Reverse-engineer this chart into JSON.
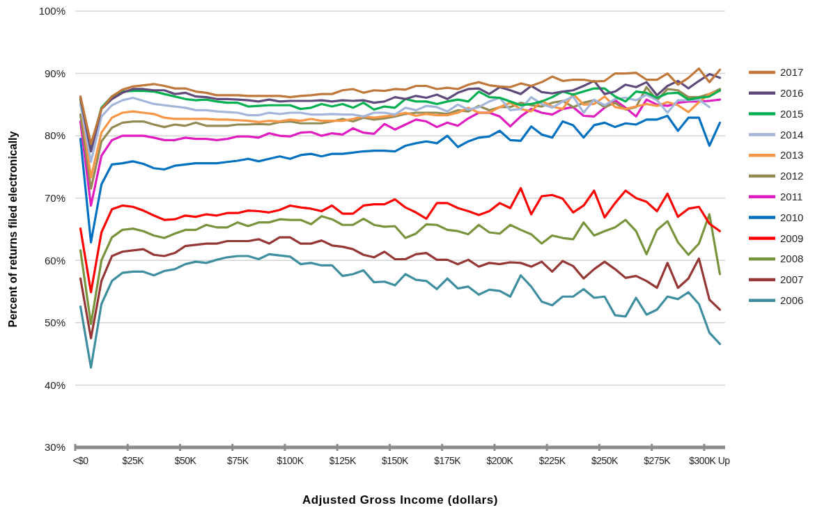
{
  "chart_data": {
    "type": "line",
    "xlabel": "Adjusted Gross Income (dollars)",
    "ylabel": "Percent of returns filed electronically",
    "categories": [
      "<$0",
      null,
      null,
      null,
      null,
      "$25K",
      null,
      null,
      null,
      null,
      "$50K",
      null,
      null,
      null,
      null,
      "$75K",
      null,
      null,
      null,
      null,
      "$100K",
      null,
      null,
      null,
      null,
      "$125K",
      null,
      null,
      null,
      null,
      "$150K",
      null,
      null,
      null,
      null,
      "$175K",
      null,
      null,
      null,
      null,
      "$200K",
      null,
      null,
      null,
      null,
      "$225K",
      null,
      null,
      null,
      null,
      "$250K",
      null,
      null,
      null,
      null,
      "$275K",
      null,
      null,
      null,
      null,
      "$300K Up",
      null
    ],
    "ylim": [
      30,
      100
    ],
    "yticks": [
      {
        "value": 30,
        "label": "30%"
      },
      {
        "value": 40,
        "label": "40%"
      },
      {
        "value": 50,
        "label": "50%"
      },
      {
        "value": 60,
        "label": "60%"
      },
      {
        "value": 70,
        "label": "70%"
      },
      {
        "value": 80,
        "label": "80%"
      },
      {
        "value": 90,
        "label": "90%"
      },
      {
        "value": 100,
        "label": "100%"
      }
    ],
    "grid": "y",
    "legend": "right",
    "series": [
      {
        "name": "2017",
        "color": "#c0773a",
        "values": [
          86.3,
          78.7,
          84.3,
          86.3,
          87.4,
          87.9,
          88.1,
          88.3,
          88.0,
          87.6,
          87.6,
          87.1,
          86.9,
          86.5,
          86.5,
          86.5,
          86.4,
          86.4,
          86.4,
          86.4,
          86.2,
          86.4,
          86.5,
          86.7,
          86.7,
          87.3,
          87.5,
          86.9,
          87.3,
          87.2,
          87.5,
          87.4,
          88.0,
          88.0,
          87.5,
          87.7,
          87.5,
          88.2,
          88.6,
          88.1,
          87.9,
          87.8,
          88.4,
          88.0,
          88.6,
          89.5,
          88.8,
          89.0,
          89.0,
          88.7,
          88.8,
          90.0,
          90.0,
          90.1,
          89.0,
          89.0,
          90.0,
          88.2,
          89.3,
          90.8,
          88.6,
          90.6
        ]
      },
      {
        "name": "2016",
        "color": "#604a7b",
        "values": [
          86.1,
          77.5,
          84.3,
          85.9,
          86.9,
          87.5,
          87.5,
          87.3,
          87.3,
          86.7,
          86.9,
          86.3,
          86.2,
          85.9,
          85.9,
          85.8,
          85.7,
          85.5,
          85.8,
          85.5,
          85.6,
          85.6,
          85.6,
          85.7,
          85.5,
          85.7,
          85.6,
          85.7,
          85.3,
          85.5,
          86.2,
          85.9,
          86.4,
          86.1,
          86.6,
          85.9,
          86.9,
          87.5,
          87.6,
          86.7,
          87.8,
          87.3,
          86.7,
          88.0,
          87.0,
          86.8,
          87.1,
          87.3,
          88.0,
          88.8,
          86.7,
          87.1,
          88.2,
          87.8,
          88.6,
          86.5,
          88.0,
          88.8,
          87.6,
          88.8,
          89.9,
          89.3
        ]
      },
      {
        "name": "2015",
        "color": "#00b050",
        "values": [
          85.9,
          78.3,
          84.5,
          86.3,
          87.1,
          87.2,
          87.2,
          87.1,
          86.7,
          86.3,
          85.9,
          85.7,
          85.8,
          85.5,
          85.3,
          85.3,
          84.7,
          84.8,
          84.9,
          84.9,
          84.9,
          84.3,
          84.5,
          85.1,
          84.7,
          85.1,
          84.5,
          85.3,
          84.2,
          84.7,
          84.5,
          85.9,
          85.5,
          85.5,
          85.1,
          85.5,
          85.8,
          85.5,
          87.1,
          86.2,
          86.1,
          85.5,
          84.9,
          85.1,
          85.5,
          86.2,
          87.1,
          86.6,
          87.1,
          87.6,
          87.6,
          86.3,
          85.5,
          87.1,
          86.9,
          86.1,
          86.8,
          86.9,
          85.8,
          86.1,
          86.3,
          87.3
        ]
      },
      {
        "name": "2014",
        "color": "#a3b5d9",
        "values": [
          85.1,
          75.8,
          83.1,
          84.9,
          85.7,
          86.1,
          85.6,
          85.1,
          84.9,
          84.7,
          84.5,
          84.1,
          84.1,
          83.9,
          83.8,
          83.7,
          83.3,
          83.3,
          83.7,
          83.5,
          83.7,
          83.7,
          83.4,
          83.4,
          83.5,
          83.4,
          83.4,
          83.1,
          83.7,
          83.7,
          83.4,
          84.5,
          84.1,
          84.8,
          84.6,
          83.9,
          85.0,
          84.2,
          84.6,
          85.5,
          86.1,
          84.1,
          84.3,
          86.2,
          85.1,
          84.5,
          85.5,
          86.3,
          83.7,
          85.8,
          84.9,
          85.9,
          86.1,
          85.7,
          86.6,
          85.7,
          83.7,
          85.7,
          85.7,
          85.8,
          84.6,
          null
        ]
      },
      {
        "name": "2013",
        "color": "#f79646",
        "values": [
          85.5,
          73.3,
          80.5,
          82.9,
          83.7,
          83.9,
          83.7,
          83.5,
          82.9,
          82.7,
          82.7,
          82.7,
          82.7,
          82.6,
          82.6,
          82.5,
          82.4,
          82.2,
          82.4,
          82.3,
          82.6,
          82.4,
          82.7,
          82.4,
          82.4,
          82.4,
          82.7,
          83.1,
          82.9,
          83.1,
          83.3,
          83.7,
          83.2,
          83.5,
          83.3,
          83.3,
          83.7,
          84.5,
          83.7,
          83.7,
          84.6,
          85.3,
          84.3,
          83.9,
          85.6,
          84.7,
          84.3,
          86.7,
          85.0,
          85.1,
          86.3,
          84.6,
          84.3,
          84.7,
          85.1,
          84.8,
          85.4,
          84.9,
          83.8,
          85.4,
          86.7,
          87.2
        ]
      },
      {
        "name": "2012",
        "color": "#948a54",
        "values": [
          83.4,
          71.5,
          79.1,
          81.3,
          82.1,
          82.3,
          82.3,
          81.8,
          81.4,
          81.8,
          81.6,
          82.1,
          81.6,
          81.6,
          81.6,
          81.8,
          81.8,
          81.9,
          81.8,
          82.2,
          82.3,
          82.0,
          82.0,
          82.0,
          82.3,
          82.7,
          82.3,
          82.9,
          82.6,
          82.8,
          83.1,
          83.5,
          83.7,
          83.7,
          83.7,
          83.5,
          84.1,
          83.9,
          84.8,
          84.1,
          84.6,
          84.6,
          85.3,
          84.9,
          84.7,
          85.3,
          85.6,
          84.6,
          85.3,
          85.7,
          84.6,
          85.3,
          84.2,
          84.6,
          87.8,
          85.7,
          87.5,
          87.3,
          86.2,
          86.2,
          86.7,
          87.5
        ]
      },
      {
        "name": "2011",
        "color": "#e01cc0",
        "values": [
          82.3,
          68.8,
          76.8,
          79.3,
          80.0,
          80.0,
          80.0,
          79.7,
          79.3,
          79.3,
          79.7,
          79.5,
          79.5,
          79.3,
          79.5,
          79.9,
          79.9,
          79.7,
          80.4,
          80.0,
          79.9,
          80.5,
          80.6,
          80.0,
          80.4,
          80.2,
          81.2,
          80.5,
          80.3,
          81.9,
          81.0,
          81.8,
          82.6,
          82.3,
          81.4,
          82.1,
          81.6,
          82.8,
          83.7,
          83.7,
          83.1,
          81.5,
          83.1,
          84.3,
          83.7,
          83.4,
          84.3,
          84.6,
          83.2,
          83.1,
          84.5,
          85.7,
          84.5,
          83.1,
          85.8,
          85.0,
          84.8,
          85.3,
          85.5,
          85.5,
          85.6,
          85.8
        ]
      },
      {
        "name": "2010",
        "color": "#0070c0",
        "values": [
          79.5,
          62.9,
          72.2,
          75.4,
          75.6,
          75.9,
          75.5,
          74.8,
          74.6,
          75.2,
          75.4,
          75.6,
          75.6,
          75.6,
          75.8,
          76.0,
          76.3,
          75.9,
          76.3,
          76.7,
          76.3,
          76.9,
          77.1,
          76.7,
          77.1,
          77.1,
          77.3,
          77.5,
          77.6,
          77.6,
          77.5,
          78.4,
          78.8,
          79.1,
          78.8,
          80.0,
          78.2,
          79.1,
          79.7,
          79.9,
          80.8,
          79.3,
          79.2,
          81.5,
          80.2,
          79.7,
          82.3,
          81.7,
          79.7,
          81.7,
          82.1,
          81.4,
          82.0,
          81.8,
          82.6,
          82.6,
          83.2,
          80.8,
          82.9,
          82.9,
          78.4,
          82.1
        ]
      },
      {
        "name": "2009",
        "color": "#ff0000",
        "values": [
          65.1,
          54.9,
          64.5,
          68.2,
          68.8,
          68.6,
          68.0,
          67.2,
          66.5,
          66.6,
          67.2,
          67.0,
          67.4,
          67.2,
          67.6,
          67.6,
          68.0,
          67.9,
          67.7,
          68.1,
          68.8,
          68.5,
          68.3,
          67.9,
          68.8,
          67.5,
          67.5,
          68.8,
          69.0,
          69.0,
          69.8,
          68.5,
          67.7,
          66.7,
          69.2,
          69.2,
          68.4,
          67.9,
          67.3,
          67.9,
          69.2,
          68.4,
          71.6,
          67.4,
          70.3,
          70.5,
          69.9,
          67.7,
          68.8,
          71.2,
          66.9,
          69.2,
          71.2,
          70.0,
          69.4,
          67.9,
          70.7,
          67.0,
          68.3,
          68.6,
          65.9,
          64.7
        ]
      },
      {
        "name": "2008",
        "color": "#77933c",
        "values": [
          61.6,
          49.8,
          60.0,
          63.7,
          64.9,
          65.1,
          64.7,
          64.0,
          63.6,
          64.3,
          64.9,
          64.9,
          65.7,
          65.3,
          65.3,
          66.1,
          65.5,
          66.1,
          66.1,
          66.6,
          66.5,
          66.5,
          65.8,
          67.1,
          66.6,
          65.7,
          65.7,
          66.7,
          65.7,
          65.4,
          65.5,
          63.6,
          64.3,
          65.8,
          65.7,
          64.9,
          64.7,
          64.2,
          65.7,
          64.5,
          64.3,
          65.7,
          64.9,
          64.2,
          62.7,
          64.0,
          63.6,
          63.4,
          66.1,
          64.0,
          64.7,
          65.3,
          66.5,
          64.7,
          61.0,
          64.9,
          66.3,
          62.9,
          60.9,
          62.7,
          67.4,
          57.8
        ]
      },
      {
        "name": "2007",
        "color": "#953735",
        "values": [
          57.1,
          47.5,
          56.7,
          60.7,
          61.4,
          61.6,
          61.8,
          60.9,
          60.7,
          61.2,
          62.3,
          62.5,
          62.7,
          62.7,
          63.1,
          63.1,
          63.1,
          63.4,
          62.7,
          63.7,
          63.7,
          62.7,
          62.7,
          63.2,
          62.4,
          62.2,
          61.8,
          60.9,
          60.5,
          61.4,
          60.2,
          60.2,
          61.0,
          61.2,
          60.1,
          60.1,
          59.4,
          60.1,
          59.0,
          59.6,
          59.4,
          59.7,
          59.6,
          59.0,
          59.8,
          58.2,
          59.9,
          59.1,
          57.1,
          58.6,
          59.8,
          58.6,
          57.2,
          57.5,
          56.7,
          55.6,
          59.6,
          55.6,
          57.1,
          60.3,
          53.7,
          52.1
        ]
      },
      {
        "name": "2006",
        "color": "#3e8ea0",
        "values": [
          52.6,
          42.8,
          53.0,
          56.7,
          58.0,
          58.2,
          58.2,
          57.6,
          58.3,
          58.6,
          59.4,
          59.8,
          59.6,
          60.1,
          60.5,
          60.7,
          60.7,
          60.2,
          61.0,
          60.8,
          60.6,
          59.4,
          59.6,
          59.2,
          59.2,
          57.5,
          57.8,
          58.4,
          56.5,
          56.6,
          56.0,
          57.8,
          56.9,
          56.7,
          55.4,
          57.1,
          55.5,
          55.8,
          54.5,
          55.3,
          55.1,
          54.2,
          57.6,
          55.8,
          53.4,
          52.8,
          54.2,
          54.2,
          55.4,
          54.0,
          54.2,
          51.2,
          51.0,
          54.0,
          51.3,
          52.1,
          54.2,
          53.8,
          54.9,
          53.0,
          48.4,
          46.6
        ]
      }
    ]
  }
}
